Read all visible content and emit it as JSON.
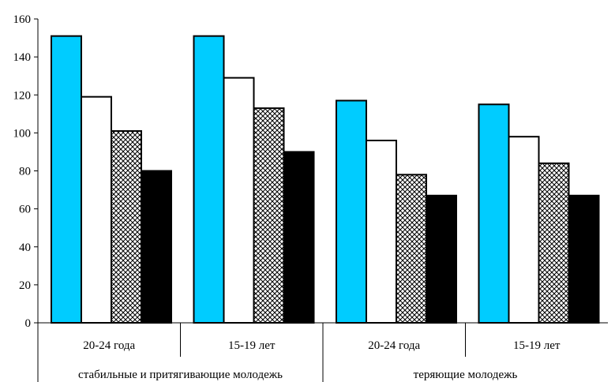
{
  "chart_data": {
    "type": "bar",
    "ylim": [
      0,
      160
    ],
    "yticks": [
      0,
      20,
      40,
      60,
      80,
      100,
      120,
      140,
      160
    ],
    "groups": [
      {
        "label": "стабильные и притягивающие молодежь",
        "categories": [
          "20-24 года",
          "15-19 лет"
        ]
      },
      {
        "label": "теряющие молодежь",
        "categories": [
          "20-24 года",
          "15-19 лет"
        ]
      }
    ],
    "categories": [
      "20-24 года",
      "15-19 лет",
      "20-24 года",
      "15-19 лет"
    ],
    "series": [
      {
        "values": [
          151,
          151,
          117,
          115
        ],
        "fill": "#00ccff",
        "pattern": "solid"
      },
      {
        "values": [
          119,
          129,
          96,
          98
        ],
        "fill": "#ffffff",
        "pattern": "solid"
      },
      {
        "values": [
          101,
          113,
          78,
          84
        ],
        "fill": "#ffffff",
        "pattern": "crosshatch"
      },
      {
        "values": [
          80,
          90,
          67,
          67
        ],
        "fill": "#000000",
        "pattern": "solid"
      }
    ],
    "grid": false,
    "legend": "none"
  }
}
